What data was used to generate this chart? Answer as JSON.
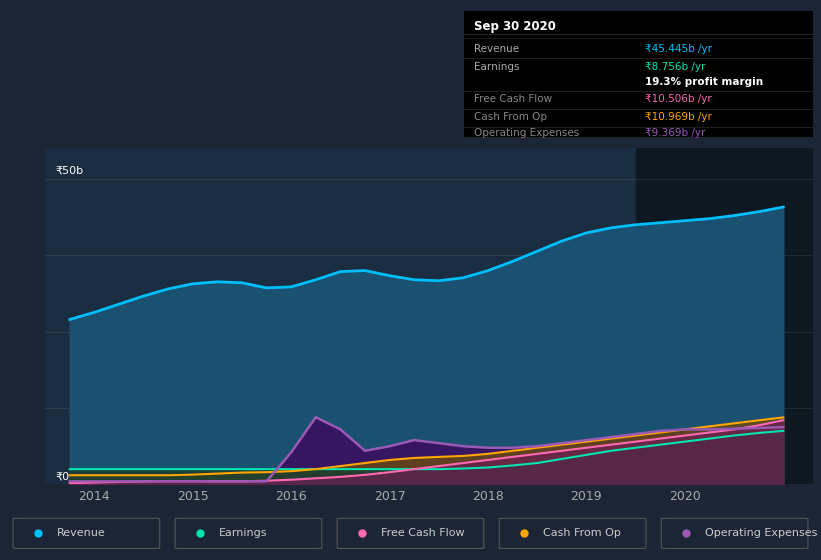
{
  "bg_color": "#1c2535",
  "plot_bg_color": "#1a2d40",
  "xlim": [
    2013.5,
    2021.3
  ],
  "ylim": [
    0,
    55
  ],
  "x_ticks": [
    2014,
    2015,
    2016,
    2017,
    2018,
    2019,
    2020
  ],
  "ylabel_top": "₹50b",
  "ylabel_bottom": "₹0",
  "revenue_color": "#00bfff",
  "earnings_color": "#00e5b0",
  "fcf_color": "#ff69b4",
  "cashop_color": "#ffa500",
  "opex_color": "#9b59b6",
  "revenue_fill": "#1a5070",
  "earnings_fill": "#1a3d30",
  "fcf_fill": "#6a2050",
  "cashop_fill": "#6a4a10",
  "opex_fill": "#3a1060",
  "highlight_x_start": 2019.5,
  "highlight_x_end": 2021.3,
  "highlight_color": "#0d1820",
  "revenue_x": [
    2013.75,
    2014.0,
    2014.25,
    2014.5,
    2014.75,
    2015.0,
    2015.25,
    2015.5,
    2015.75,
    2016.0,
    2016.25,
    2016.5,
    2016.75,
    2017.0,
    2017.25,
    2017.5,
    2017.75,
    2018.0,
    2018.25,
    2018.5,
    2018.75,
    2019.0,
    2019.25,
    2019.5,
    2019.75,
    2020.0,
    2020.25,
    2020.5,
    2020.75,
    2021.0
  ],
  "revenue_y": [
    27,
    28,
    29.5,
    31,
    32,
    33,
    33.5,
    33,
    32.5,
    31,
    33.5,
    36,
    35,
    34,
    33.5,
    33,
    33.5,
    35,
    36.5,
    38,
    40,
    41.5,
    42,
    42.5,
    43,
    43,
    43.5,
    44,
    44.5,
    45.4
  ],
  "earnings_x": [
    2013.75,
    2014.0,
    2014.25,
    2014.5,
    2014.75,
    2015.0,
    2015.25,
    2015.5,
    2015.75,
    2016.0,
    2016.25,
    2016.5,
    2016.75,
    2017.0,
    2017.25,
    2017.5,
    2017.75,
    2018.0,
    2018.25,
    2018.5,
    2018.75,
    2019.0,
    2019.25,
    2019.5,
    2019.75,
    2020.0,
    2020.25,
    2020.5,
    2020.75,
    2021.0
  ],
  "earnings_y": [
    2.5,
    2.5,
    2.5,
    2.5,
    2.5,
    2.5,
    2.5,
    2.5,
    2.5,
    2.5,
    2.5,
    2.5,
    2.5,
    2.5,
    2.5,
    2.5,
    2.5,
    2.8,
    3.0,
    3.5,
    4.0,
    5.0,
    5.5,
    6.0,
    6.5,
    7.0,
    7.5,
    8.0,
    8.5,
    8.76
  ],
  "fcf_x": [
    2013.75,
    2014.0,
    2014.25,
    2014.5,
    2014.75,
    2015.0,
    2015.25,
    2015.5,
    2015.75,
    2016.0,
    2016.25,
    2016.5,
    2016.75,
    2017.0,
    2017.25,
    2017.5,
    2017.75,
    2018.0,
    2018.25,
    2018.5,
    2018.75,
    2019.0,
    2019.25,
    2019.5,
    2019.75,
    2020.0,
    2020.25,
    2020.5,
    2020.75,
    2021.0
  ],
  "fcf_y": [
    0.2,
    0.3,
    0.4,
    0.5,
    0.6,
    0.5,
    0.5,
    0.5,
    0.5,
    0.8,
    1.0,
    1.2,
    1.5,
    2.0,
    2.5,
    3.0,
    3.5,
    4.0,
    4.5,
    5.0,
    5.5,
    6.0,
    6.5,
    7.0,
    7.5,
    8.0,
    8.5,
    9.0,
    9.5,
    10.5
  ],
  "cashop_x": [
    2013.75,
    2014.0,
    2014.25,
    2014.5,
    2014.75,
    2015.0,
    2015.25,
    2015.5,
    2015.75,
    2016.0,
    2016.25,
    2016.5,
    2016.75,
    2017.0,
    2017.25,
    2017.5,
    2017.75,
    2018.0,
    2018.25,
    2018.5,
    2018.75,
    2019.0,
    2019.25,
    2019.5,
    2019.75,
    2020.0,
    2020.25,
    2020.5,
    2020.75,
    2021.0
  ],
  "cashop_y": [
    1.5,
    1.5,
    1.5,
    1.5,
    1.5,
    1.5,
    1.8,
    2.0,
    2.0,
    2.0,
    2.5,
    3.0,
    3.5,
    4.0,
    4.5,
    4.5,
    4.5,
    5.0,
    5.5,
    6.0,
    6.5,
    7.0,
    7.5,
    8.0,
    8.5,
    9.0,
    9.5,
    10.0,
    10.5,
    10.97
  ],
  "opex_x": [
    2013.75,
    2014.0,
    2014.25,
    2014.5,
    2014.75,
    2015.0,
    2015.25,
    2015.5,
    2015.75,
    2016.0,
    2016.25,
    2016.5,
    2016.75,
    2017.0,
    2017.25,
    2017.5,
    2017.75,
    2018.0,
    2018.25,
    2018.5,
    2018.75,
    2019.0,
    2019.25,
    2019.5,
    2019.75,
    2020.0,
    2020.25,
    2020.5,
    2020.75,
    2021.0
  ],
  "opex_y": [
    0.5,
    0.5,
    0.5,
    0.5,
    0.5,
    0.5,
    0.5,
    0.5,
    0.5,
    10.0,
    12.0,
    6.0,
    5.0,
    7.5,
    7.0,
    6.5,
    6.0,
    6.0,
    6.0,
    6.5,
    7.0,
    7.5,
    8.0,
    8.5,
    9.0,
    9.0,
    9.0,
    9.2,
    9.3,
    9.37
  ],
  "info_title": "Sep 30 2020",
  "info_rows": [
    {
      "label": "Revenue",
      "value": "₹45.445b /yr",
      "lcolor": "#aaaaaa",
      "vcolor": "#00bfff"
    },
    {
      "label": "Earnings",
      "value": "₹8.756b /yr",
      "lcolor": "#aaaaaa",
      "vcolor": "#00e5b0"
    },
    {
      "label": "",
      "value": "19.3% profit margin",
      "lcolor": "#aaaaaa",
      "vcolor": "#ffffff"
    },
    {
      "label": "Free Cash Flow",
      "value": "₹10.506b /yr",
      "lcolor": "#888888",
      "vcolor": "#ff69b4"
    },
    {
      "label": "Cash From Op",
      "value": "₹10.969b /yr",
      "lcolor": "#888888",
      "vcolor": "#ffa500"
    },
    {
      "label": "Operating Expenses",
      "value": "₹9.369b /yr",
      "lcolor": "#888888",
      "vcolor": "#9b59b6"
    }
  ],
  "legend_items": [
    {
      "label": "Revenue",
      "color": "#00bfff"
    },
    {
      "label": "Earnings",
      "color": "#00e5b0"
    },
    {
      "label": "Free Cash Flow",
      "color": "#ff69b4"
    },
    {
      "label": "Cash From Op",
      "color": "#ffa500"
    },
    {
      "label": "Operating Expenses",
      "color": "#9b59b6"
    }
  ]
}
